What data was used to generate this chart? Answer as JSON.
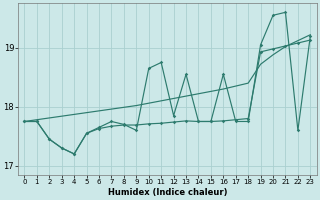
{
  "xlabel": "Humidex (Indice chaleur)",
  "bg_color": "#cce8e8",
  "line_color": "#2d7b6e",
  "grid_color": "#aad0d0",
  "xlim": [
    -0.5,
    23.5
  ],
  "ylim": [
    16.85,
    19.75
  ],
  "xticks": [
    0,
    1,
    2,
    3,
    4,
    5,
    6,
    7,
    8,
    9,
    10,
    11,
    12,
    13,
    14,
    15,
    16,
    17,
    18,
    19,
    20,
    21,
    22,
    23
  ],
  "yticks": [
    17,
    18,
    19
  ],
  "x": [
    0,
    1,
    2,
    3,
    4,
    5,
    6,
    7,
    8,
    9,
    10,
    11,
    12,
    13,
    14,
    15,
    16,
    17,
    18,
    19,
    20,
    21,
    22,
    23
  ],
  "y_zigzag": [
    17.75,
    17.75,
    17.45,
    17.3,
    17.2,
    17.55,
    17.65,
    17.75,
    17.7,
    17.6,
    18.65,
    18.75,
    17.85,
    18.55,
    17.75,
    17.75,
    18.55,
    17.75,
    17.75,
    19.05,
    19.55,
    19.6,
    17.6,
    19.2
  ],
  "y_trend": [
    17.75,
    17.78,
    17.81,
    17.84,
    17.87,
    17.9,
    17.93,
    17.96,
    17.99,
    18.02,
    18.06,
    18.1,
    18.14,
    18.18,
    18.22,
    18.26,
    18.3,
    18.35,
    18.4,
    18.72,
    18.88,
    19.02,
    19.12,
    19.22
  ],
  "y_flat": [
    17.75,
    17.75,
    17.45,
    17.3,
    17.2,
    17.55,
    17.63,
    17.67,
    17.69,
    17.69,
    17.71,
    17.72,
    17.74,
    17.76,
    17.75,
    17.75,
    17.76,
    17.78,
    17.8,
    18.93,
    18.98,
    19.03,
    19.08,
    19.13
  ]
}
